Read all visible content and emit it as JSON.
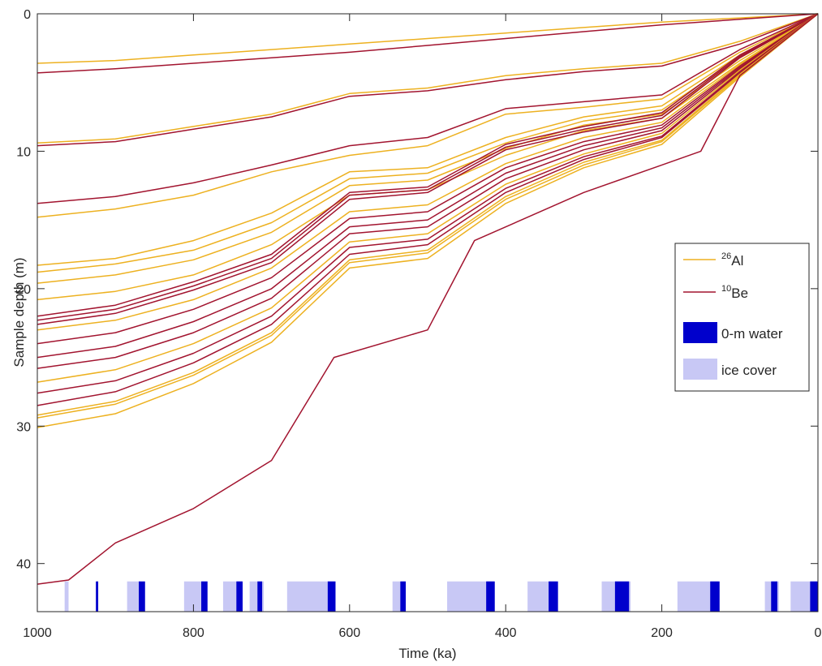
{
  "chart_data": {
    "type": "line",
    "title": "",
    "xlabel": "Time (ka)",
    "ylabel": "Sample depth (m)",
    "xlim": [
      1000,
      0
    ],
    "ylim": [
      0,
      43.5
    ],
    "x_reversed": true,
    "y_reversed": true,
    "x_ticks": [
      1000,
      800,
      600,
      400,
      200,
      0
    ],
    "x_tick_labels": [
      "1000",
      "800",
      "600",
      "400",
      "200",
      "0"
    ],
    "y_ticks": [
      0,
      10,
      20,
      30,
      40
    ],
    "y_tick_labels": [
      "0",
      "10",
      "20",
      "30",
      "40"
    ],
    "grid": false,
    "legend_placement": "right",
    "colors": {
      "al26": "#EDB120",
      "be10": "#A2142F",
      "water": "#0000CC",
      "ice": "#C8C8F5"
    },
    "legend": [
      {
        "key": "al26",
        "sup": "26",
        "label": "Al",
        "kind": "line",
        "color": "#EDB120"
      },
      {
        "key": "be10",
        "sup": "10",
        "label": "Be",
        "kind": "line",
        "color": "#A2142F"
      },
      {
        "key": "water",
        "sup": "",
        "label": "0-m water",
        "kind": "patch",
        "color": "#0000CC"
      },
      {
        "key": "ice",
        "sup": "",
        "label": "ice cover",
        "kind": "patch",
        "color": "#C8C8F5"
      }
    ],
    "ice_cover_ka": [
      [
        965,
        960
      ],
      [
        885,
        868
      ],
      [
        812,
        782
      ],
      [
        762,
        738
      ],
      [
        728,
        710
      ],
      [
        680,
        620
      ],
      [
        545,
        530
      ],
      [
        475,
        415
      ],
      [
        372,
        336
      ],
      [
        277,
        240
      ],
      [
        180,
        128
      ],
      [
        68,
        50
      ],
      [
        35,
        0
      ]
    ],
    "water_ka": [
      [
        925,
        922
      ],
      [
        870,
        862
      ],
      [
        790,
        782
      ],
      [
        745,
        737
      ],
      [
        718,
        712
      ],
      [
        628,
        618
      ],
      [
        535,
        528
      ],
      [
        425,
        414
      ],
      [
        345,
        333
      ],
      [
        260,
        242
      ],
      [
        138,
        126
      ],
      [
        60,
        52
      ],
      [
        10,
        0
      ]
    ],
    "series": [
      {
        "name": "Al-1",
        "group": "al26",
        "x": [
          1000,
          900,
          800,
          700,
          600,
          500,
          400,
          300,
          200,
          100,
          0
        ],
        "y": [
          3.6,
          3.4,
          3.0,
          2.6,
          2.2,
          1.8,
          1.4,
          1.0,
          0.6,
          0.3,
          0
        ]
      },
      {
        "name": "Be-1",
        "group": "be10",
        "x": [
          1000,
          900,
          800,
          700,
          600,
          500,
          400,
          300,
          200,
          100,
          0
        ],
        "y": [
          4.3,
          4.0,
          3.6,
          3.2,
          2.8,
          2.3,
          1.8,
          1.3,
          0.8,
          0.4,
          0
        ]
      },
      {
        "name": "Al-2",
        "group": "al26",
        "x": [
          1000,
          900,
          800,
          700,
          600,
          500,
          400,
          300,
          200,
          100,
          0
        ],
        "y": [
          9.4,
          9.1,
          8.2,
          7.3,
          5.8,
          5.4,
          4.5,
          4.0,
          3.6,
          2.0,
          0
        ]
      },
      {
        "name": "Be-2",
        "group": "be10",
        "x": [
          1000,
          900,
          800,
          700,
          600,
          500,
          400,
          300,
          200,
          100,
          0
        ],
        "y": [
          9.6,
          9.3,
          8.4,
          7.5,
          6.0,
          5.6,
          4.8,
          4.2,
          3.8,
          2.2,
          0
        ]
      },
      {
        "name": "Al-3",
        "group": "al26",
        "x": [
          1000,
          900,
          800,
          700,
          600,
          500,
          400,
          300,
          200,
          100,
          0
        ],
        "y": [
          14.8,
          14.2,
          13.2,
          11.5,
          10.3,
          9.6,
          7.3,
          6.8,
          6.2,
          2.8,
          0
        ]
      },
      {
        "name": "Be-3",
        "group": "be10",
        "x": [
          1000,
          900,
          800,
          700,
          600,
          500,
          400,
          300,
          200,
          100,
          0
        ],
        "y": [
          13.8,
          13.3,
          12.3,
          11.0,
          9.6,
          9.0,
          6.9,
          6.4,
          5.9,
          2.6,
          0
        ]
      },
      {
        "name": "Al-4",
        "group": "al26",
        "x": [
          1000,
          900,
          800,
          700,
          600,
          500,
          400,
          300,
          200,
          100,
          0
        ],
        "y": [
          18.3,
          17.8,
          16.5,
          14.5,
          11.5,
          11.2,
          9.0,
          7.5,
          6.7,
          3.0,
          0
        ]
      },
      {
        "name": "Al-5",
        "group": "al26",
        "x": [
          1000,
          900,
          800,
          700,
          600,
          500,
          400,
          300,
          200,
          100,
          0
        ],
        "y": [
          18.8,
          18.2,
          17.2,
          15.2,
          12.0,
          11.6,
          9.4,
          7.8,
          7.0,
          3.2,
          0
        ]
      },
      {
        "name": "Al-6",
        "group": "al26",
        "x": [
          1000,
          900,
          800,
          700,
          600,
          500,
          400,
          300,
          200,
          100,
          0
        ],
        "y": [
          19.6,
          19.0,
          17.9,
          15.9,
          12.5,
          12.1,
          9.8,
          8.1,
          7.3,
          3.4,
          0
        ]
      },
      {
        "name": "Al-7",
        "group": "al26",
        "x": [
          1000,
          900,
          800,
          700,
          600,
          500,
          400,
          300,
          200,
          100,
          0
        ],
        "y": [
          20.8,
          20.2,
          19.0,
          16.8,
          13.2,
          12.8,
          10.3,
          8.5,
          7.6,
          3.6,
          0
        ]
      },
      {
        "name": "Be-4",
        "group": "be10",
        "x": [
          1000,
          900,
          800,
          700,
          600,
          500,
          400,
          300,
          200,
          100,
          0
        ],
        "y": [
          22.0,
          21.2,
          19.5,
          17.5,
          13.0,
          12.6,
          9.5,
          8.2,
          7.2,
          3.0,
          0
        ]
      },
      {
        "name": "Be-5",
        "group": "be10",
        "x": [
          1000,
          900,
          800,
          700,
          600,
          500,
          400,
          300,
          200,
          100,
          0
        ],
        "y": [
          22.3,
          21.5,
          19.8,
          17.8,
          13.2,
          12.8,
          9.7,
          8.4,
          7.4,
          3.1,
          0
        ]
      },
      {
        "name": "Be-6",
        "group": "be10",
        "x": [
          1000,
          900,
          800,
          700,
          600,
          500,
          400,
          300,
          200,
          100,
          0
        ],
        "y": [
          22.6,
          21.8,
          20.1,
          18.1,
          13.5,
          13.0,
          9.9,
          8.6,
          7.6,
          3.2,
          0
        ]
      },
      {
        "name": "Al-8",
        "group": "al26",
        "x": [
          1000,
          900,
          800,
          700,
          600,
          500,
          400,
          300,
          200,
          100,
          0
        ],
        "y": [
          23.0,
          22.3,
          20.8,
          18.5,
          14.4,
          13.9,
          10.9,
          9.0,
          7.9,
          3.7,
          0
        ]
      },
      {
        "name": "Be-7",
        "group": "be10",
        "x": [
          1000,
          900,
          800,
          700,
          600,
          500,
          400,
          300,
          200,
          100,
          0
        ],
        "y": [
          24.0,
          23.2,
          21.5,
          19.2,
          14.9,
          14.4,
          11.2,
          9.3,
          8.1,
          3.8,
          0
        ]
      },
      {
        "name": "Be-8",
        "group": "be10",
        "x": [
          1000,
          900,
          800,
          700,
          600,
          500,
          400,
          300,
          200,
          100,
          0
        ],
        "y": [
          25.0,
          24.2,
          22.4,
          20.0,
          15.5,
          15.0,
          11.6,
          9.6,
          8.3,
          3.9,
          0
        ]
      },
      {
        "name": "Be-9",
        "group": "be10",
        "x": [
          1000,
          900,
          800,
          700,
          600,
          500,
          400,
          300,
          200,
          100,
          0
        ],
        "y": [
          25.8,
          25.0,
          23.2,
          20.7,
          16.0,
          15.5,
          12.0,
          9.9,
          8.5,
          4.0,
          0
        ]
      },
      {
        "name": "Al-9",
        "group": "al26",
        "x": [
          1000,
          900,
          800,
          700,
          600,
          500,
          400,
          300,
          200,
          100,
          0
        ],
        "y": [
          26.8,
          25.9,
          24.0,
          21.4,
          16.6,
          16.0,
          12.4,
          10.2,
          8.7,
          4.1,
          0
        ]
      },
      {
        "name": "Be-10",
        "group": "be10",
        "x": [
          1000,
          900,
          800,
          700,
          600,
          500,
          400,
          300,
          200,
          100,
          0
        ],
        "y": [
          27.6,
          26.7,
          24.7,
          22.0,
          17.0,
          16.4,
          12.7,
          10.4,
          8.9,
          4.2,
          0
        ]
      },
      {
        "name": "Be-11",
        "group": "be10",
        "x": [
          1000,
          900,
          800,
          700,
          600,
          500,
          400,
          300,
          200,
          100,
          0
        ],
        "y": [
          28.5,
          27.5,
          25.4,
          22.6,
          17.5,
          16.8,
          13.0,
          10.6,
          9.0,
          4.3,
          0
        ]
      },
      {
        "name": "Al-10",
        "group": "al26",
        "x": [
          1000,
          900,
          800,
          700,
          600,
          500,
          400,
          300,
          200,
          100,
          0
        ],
        "y": [
          29.2,
          28.2,
          26.1,
          23.2,
          17.9,
          17.2,
          13.3,
          10.8,
          9.2,
          4.4,
          0
        ]
      },
      {
        "name": "Al-11",
        "group": "al26",
        "x": [
          1000,
          900,
          800,
          700,
          600,
          500,
          400,
          300,
          200,
          100,
          0
        ],
        "y": [
          29.4,
          28.4,
          26.3,
          23.4,
          18.1,
          17.4,
          13.5,
          11.0,
          9.3,
          4.5,
          0
        ]
      },
      {
        "name": "Al-12",
        "group": "al26",
        "x": [
          1000,
          900,
          800,
          700,
          600,
          500,
          400,
          300,
          200,
          100,
          0
        ],
        "y": [
          30.1,
          29.1,
          26.9,
          23.9,
          18.5,
          17.8,
          13.8,
          11.2,
          9.5,
          4.6,
          0
        ]
      },
      {
        "name": "Be-12",
        "group": "be10",
        "x": [
          1000,
          960,
          900,
          800,
          700,
          620,
          500,
          440,
          300,
          200,
          150,
          100,
          0
        ],
        "y": [
          41.5,
          41.2,
          38.5,
          36.0,
          32.5,
          25.0,
          23.0,
          16.5,
          13.0,
          11.0,
          10.0,
          4.5,
          0
        ]
      }
    ]
  }
}
